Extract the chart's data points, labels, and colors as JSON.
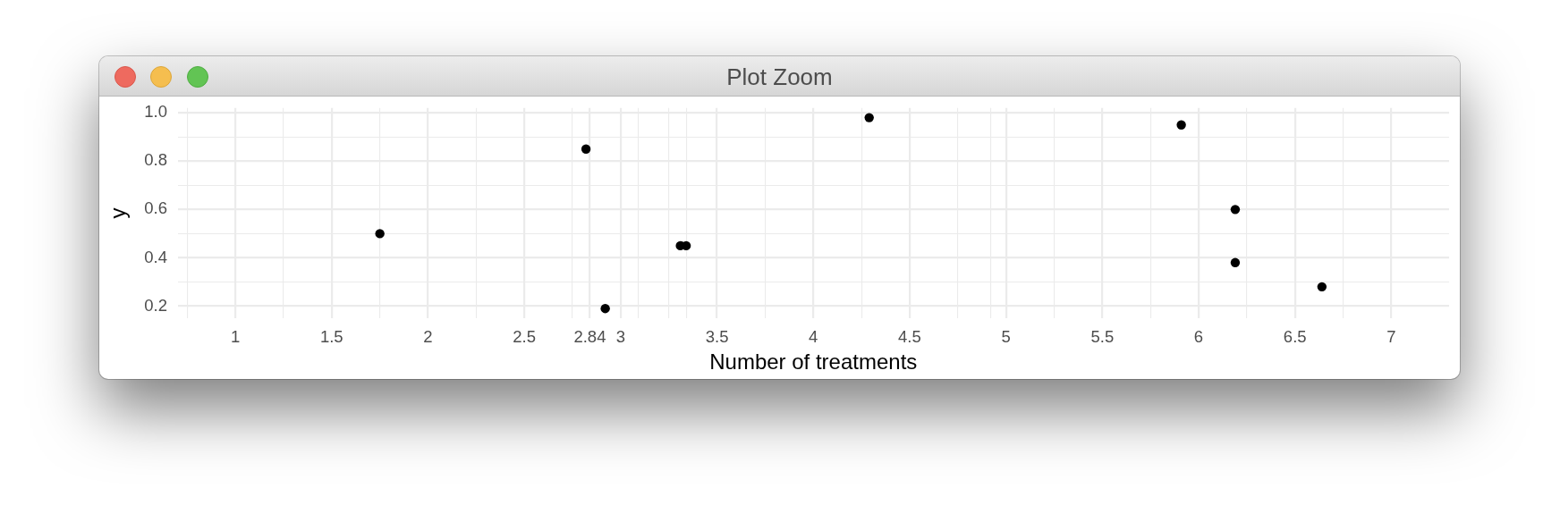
{
  "chart_data": {
    "type": "scatter",
    "title": "Plot Zoom",
    "xlabel": "Number of treatments",
    "ylabel": "y",
    "x": [
      1.75,
      2.82,
      2.92,
      3.31,
      3.34,
      4.29,
      5.91,
      6.19,
      6.19,
      6.64
    ],
    "values": [
      0.5,
      0.85,
      0.19,
      0.45,
      0.45,
      0.98,
      0.95,
      0.6,
      0.38,
      0.28
    ],
    "color": "#000000",
    "marker": "circle",
    "xlim": [
      0.7,
      7.3
    ],
    "ylim": [
      0.15,
      1.02
    ],
    "xticks": [
      {
        "value": 0.75,
        "label": null
      },
      1,
      {
        "value": 1.25,
        "label": null
      },
      1.5,
      {
        "value": 1.75,
        "label": null
      },
      2,
      {
        "value": 2.25,
        "label": null
      },
      2.5,
      {
        "value": 2.75,
        "label": null
      },
      2.84,
      3,
      {
        "value": 3.09,
        "label": null
      },
      {
        "value": 3.25,
        "label": null
      },
      {
        "value": 3.34,
        "label": null
      },
      3.5,
      {
        "value": 3.75,
        "label": null
      },
      4,
      {
        "value": 4.25,
        "label": null
      },
      4.5,
      {
        "value": 4.75,
        "label": null
      },
      {
        "value": 4.92,
        "label": null
      },
      5,
      {
        "value": 5.25,
        "label": null
      },
      5.5,
      {
        "value": 5.75,
        "label": null
      },
      6,
      {
        "value": 6.25,
        "label": null
      },
      6.5,
      {
        "value": 6.75,
        "label": null
      },
      7
    ],
    "yticks": [
      0.2,
      {
        "value": 0.3,
        "label": null
      },
      0.4,
      {
        "value": 0.5,
        "label": null
      },
      0.6,
      {
        "value": 0.7,
        "label": null
      },
      0.8,
      {
        "value": 0.9,
        "label": null
      },
      {
        "value": 1,
        "label": "1.0"
      }
    ],
    "grid": true
  }
}
